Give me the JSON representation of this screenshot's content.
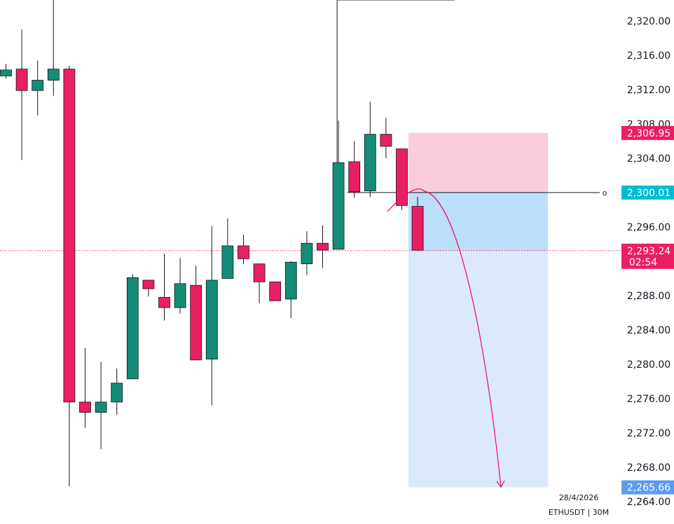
{
  "chart_data": {
    "type": "candlestick",
    "symbol_label": "ETHUSDT | 30M",
    "date_label": "28/4/2026",
    "y_ticks": [
      "2,320.00",
      "2,316.00",
      "2,312.00",
      "2,308.00",
      "2,304.00",
      "2,296.00",
      "2,288.00",
      "2,284.00",
      "2,280.00",
      "2,276.00",
      "2,272.00",
      "2,268.00",
      "2,264.00"
    ],
    "ylim": [
      2263.2,
      2321.9
    ],
    "colors": {
      "up": "#138d75",
      "down": "#e91e63",
      "stop_zone": "#f8bbd0",
      "target_zone": "#bbdefb",
      "target_zone_light": "#dce8fb",
      "path": "#e91e63"
    },
    "candles": [
      {
        "open": 2313.6,
        "high": 2315.0,
        "low": 2313.3,
        "close": 2314.3
      },
      {
        "open": 2314.4,
        "high": 2319.0,
        "low": 2303.8,
        "close": 2311.9
      },
      {
        "open": 2311.9,
        "high": 2315.4,
        "low": 2309.0,
        "close": 2313.1
      },
      {
        "open": 2313.1,
        "high": 2322.5,
        "low": 2311.3,
        "close": 2314.4
      },
      {
        "open": 2314.4,
        "high": 2314.8,
        "low": 2265.8,
        "close": 2275.6
      },
      {
        "open": 2275.6,
        "high": 2281.9,
        "low": 2272.6,
        "close": 2274.4
      },
      {
        "open": 2274.4,
        "high": 2280.3,
        "low": 2270.1,
        "close": 2275.6
      },
      {
        "open": 2275.6,
        "high": 2279.5,
        "low": 2274.1,
        "close": 2277.8
      },
      {
        "open": 2278.3,
        "high": 2290.5,
        "low": 2278.3,
        "close": 2290.1
      },
      {
        "open": 2289.8,
        "high": 2289.8,
        "low": 2287.9,
        "close": 2288.8
      },
      {
        "open": 2287.8,
        "high": 2292.9,
        "low": 2285.1,
        "close": 2286.6
      },
      {
        "open": 2286.6,
        "high": 2292.4,
        "low": 2285.9,
        "close": 2289.4
      },
      {
        "open": 2289.2,
        "high": 2291.5,
        "low": 2280.5,
        "close": 2280.5
      },
      {
        "open": 2280.6,
        "high": 2296.1,
        "low": 2275.2,
        "close": 2289.8
      },
      {
        "open": 2290.0,
        "high": 2297.0,
        "low": 2290.0,
        "close": 2293.8
      },
      {
        "open": 2293.8,
        "high": 2295.1,
        "low": 2291.7,
        "close": 2292.3
      },
      {
        "open": 2291.7,
        "high": 2291.7,
        "low": 2287.1,
        "close": 2289.6
      },
      {
        "open": 2289.6,
        "high": 2289.6,
        "low": 2287.4,
        "close": 2287.4
      },
      {
        "open": 2287.6,
        "high": 2292.0,
        "low": 2285.4,
        "close": 2291.9
      },
      {
        "open": 2291.7,
        "high": 2295.5,
        "low": 2290.4,
        "close": 2294.1
      },
      {
        "open": 2294.1,
        "high": 2296.2,
        "low": 2291.2,
        "close": 2293.3
      },
      {
        "open": 2293.4,
        "high": 2308.4,
        "low": 2293.4,
        "close": 2303.5
      },
      {
        "open": 2303.6,
        "high": 2306.0,
        "low": 2299.4,
        "close": 2300.1
      },
      {
        "open": 2300.2,
        "high": 2310.6,
        "low": 2299.5,
        "close": 2306.8
      },
      {
        "open": 2306.8,
        "high": 2308.7,
        "low": 2304.0,
        "close": 2305.4
      },
      {
        "open": 2305.1,
        "high": 2305.1,
        "low": 2298.0,
        "close": 2298.5
      },
      {
        "open": 2298.4,
        "high": 2299.5,
        "low": 2293.2,
        "close": 2293.3
      }
    ],
    "levels": {
      "stop": {
        "value": 2306.95,
        "label": "2,306.95"
      },
      "entry": {
        "value": 2300.01,
        "label": "2,300.01",
        "marker": "o"
      },
      "target": {
        "value": 2265.66,
        "label": "2,265.66"
      },
      "last_price": {
        "value": 2293.24,
        "label": "2,293.24",
        "countdown": "02:54"
      },
      "swing_high": 2308.4
    }
  }
}
